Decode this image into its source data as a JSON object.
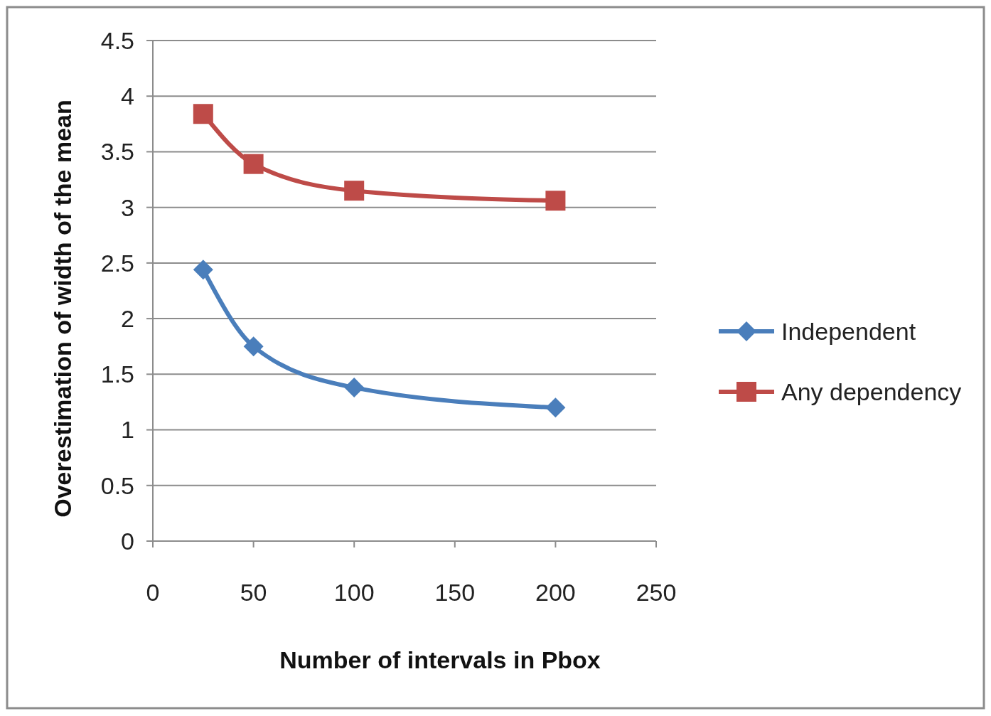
{
  "chart_data": {
    "type": "line",
    "xlabel": "Number of intervals in Pbox",
    "ylabel": "Overestimation of width of the mean",
    "x": [
      25,
      50,
      100,
      200
    ],
    "series": [
      {
        "name": "Independent",
        "color": "#4a7ebb",
        "marker": "diamond",
        "values": [
          2.44,
          1.75,
          1.38,
          1.2
        ]
      },
      {
        "name": "Any dependency",
        "color": "#be4b48",
        "marker": "square",
        "values": [
          3.84,
          3.39,
          3.15,
          3.06
        ]
      }
    ],
    "xlim": [
      0,
      250
    ],
    "xticks": [
      0,
      50,
      100,
      150,
      200,
      250
    ],
    "ylim": [
      0,
      4.5
    ],
    "yticks": [
      0,
      {
        "value": 0.5,
        "label": "0.5"
      },
      1,
      1.5,
      2,
      2.5,
      3,
      3.5,
      4,
      4.5
    ],
    "grid": "y",
    "legend": "right",
    "line_style": "solid"
  }
}
